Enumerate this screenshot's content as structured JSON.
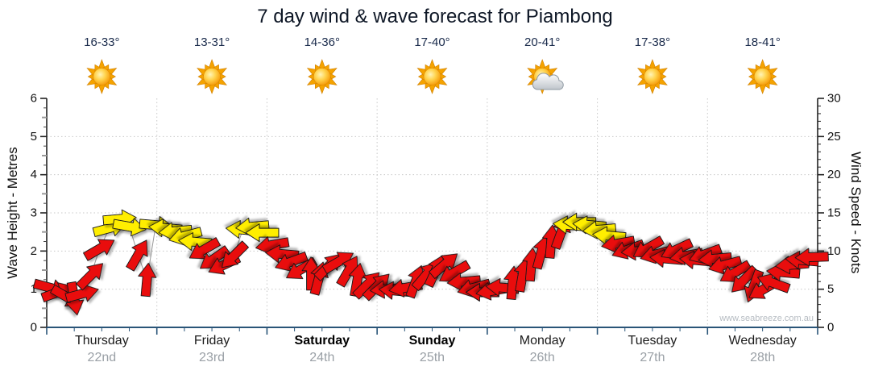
{
  "title": "7 day wind & wave forecast for Piambong",
  "watermark": "www.seabreeze.com.au",
  "colors": {
    "red": "#e90f0f",
    "yellow": "#ffee00",
    "grid": "#c8c8c8",
    "bottom_axis": "#2a5578"
  },
  "days": [
    {
      "name": "Thursday",
      "date": "22nd",
      "temp": "16-33°",
      "icon": "sunny",
      "weekend": false
    },
    {
      "name": "Friday",
      "date": "23rd",
      "temp": "13-31°",
      "icon": "sunny",
      "weekend": false
    },
    {
      "name": "Saturday",
      "date": "24th",
      "temp": "14-36°",
      "icon": "sunny",
      "weekend": true
    },
    {
      "name": "Sunday",
      "date": "25th",
      "temp": "17-40°",
      "icon": "sunny",
      "weekend": true
    },
    {
      "name": "Monday",
      "date": "26th",
      "temp": "20-41°",
      "icon": "partly-cloudy",
      "weekend": false
    },
    {
      "name": "Tuesday",
      "date": "27th",
      "temp": "17-38°",
      "icon": "sunny",
      "weekend": false
    },
    {
      "name": "Wednesday",
      "date": "28th",
      "temp": "18-41°",
      "icon": "sunny",
      "weekend": false
    }
  ],
  "chart_data": {
    "type": "line",
    "title": "7 day wind & wave forecast for Piambong",
    "grid": "dotted",
    "left_axis": {
      "label": "Wave Height - Metres",
      "min": 0,
      "max": 6,
      "tick_step": 1
    },
    "right_axis": {
      "label": "Wind Speed - Knots",
      "min": 0,
      "max": 30,
      "tick_step": 5
    },
    "x_axis": {
      "unit": "day",
      "range": [
        0,
        7
      ]
    },
    "series": [
      {
        "name": "Wind speed and direction",
        "units": "knots",
        "points": [
          {
            "d": 0.03,
            "kn": 5.2,
            "rot": 15,
            "c": "red"
          },
          {
            "d": 0.1,
            "kn": 4.6,
            "rot": -20,
            "c": "red"
          },
          {
            "d": 0.18,
            "kn": 4.0,
            "rot": 30,
            "c": "red"
          },
          {
            "d": 0.25,
            "kn": 3.8,
            "rot": 80,
            "c": "red"
          },
          {
            "d": 0.32,
            "kn": 4.4,
            "rot": -15,
            "c": "red"
          },
          {
            "d": 0.4,
            "kn": 6.8,
            "rot": -45,
            "c": "red"
          },
          {
            "d": 0.48,
            "kn": 10.3,
            "rot": -30,
            "c": "red"
          },
          {
            "d": 0.57,
            "kn": 13.0,
            "rot": -15,
            "c": "yellow"
          },
          {
            "d": 0.66,
            "kn": 14.2,
            "rot": -5,
            "c": "yellow"
          },
          {
            "d": 0.75,
            "kn": 13.2,
            "rot": 10,
            "c": "yellow"
          },
          {
            "d": 0.83,
            "kn": 9.5,
            "rot": -60,
            "c": "red"
          },
          {
            "d": 0.91,
            "kn": 6.2,
            "rot": -85,
            "c": "red"
          },
          {
            "d": 0.99,
            "kn": 13.4,
            "rot": 5,
            "c": "yellow"
          },
          {
            "d": 1.08,
            "kn": 13.0,
            "rot": 185,
            "c": "yellow"
          },
          {
            "d": 1.17,
            "kn": 12.6,
            "rot": 175,
            "c": "yellow"
          },
          {
            "d": 1.26,
            "kn": 12.0,
            "rot": 165,
            "c": "yellow"
          },
          {
            "d": 1.35,
            "kn": 11.2,
            "rot": 185,
            "c": "yellow"
          },
          {
            "d": 1.43,
            "kn": 10.2,
            "rot": 150,
            "c": "red"
          },
          {
            "d": 1.52,
            "kn": 9.0,
            "rot": 145,
            "c": "red"
          },
          {
            "d": 1.61,
            "kn": 8.2,
            "rot": 155,
            "c": "red"
          },
          {
            "d": 1.7,
            "kn": 9.4,
            "rot": 135,
            "c": "red"
          },
          {
            "d": 1.78,
            "kn": 12.8,
            "rot": 185,
            "c": "yellow"
          },
          {
            "d": 1.87,
            "kn": 13.2,
            "rot": 175,
            "c": "yellow"
          },
          {
            "d": 1.96,
            "kn": 12.4,
            "rot": 180,
            "c": "yellow"
          },
          {
            "d": 2.05,
            "kn": 10.8,
            "rot": 170,
            "c": "red"
          },
          {
            "d": 2.14,
            "kn": 9.6,
            "rot": 185,
            "c": "red"
          },
          {
            "d": 2.22,
            "kn": 8.6,
            "rot": 160,
            "c": "red"
          },
          {
            "d": 2.31,
            "kn": 7.6,
            "rot": 150,
            "c": "red"
          },
          {
            "d": 2.4,
            "kn": 7.0,
            "rot": -90,
            "c": "red"
          },
          {
            "d": 2.47,
            "kn": 6.4,
            "rot": -75,
            "c": "red"
          },
          {
            "d": 2.56,
            "kn": 8.0,
            "rot": -45,
            "c": "red"
          },
          {
            "d": 2.65,
            "kn": 8.6,
            "rot": -30,
            "c": "red"
          },
          {
            "d": 2.74,
            "kn": 7.4,
            "rot": -60,
            "c": "red"
          },
          {
            "d": 2.82,
            "kn": 6.2,
            "rot": -80,
            "c": "red"
          },
          {
            "d": 2.91,
            "kn": 5.6,
            "rot": -45,
            "c": "red"
          },
          {
            "d": 3.0,
            "kn": 5.4,
            "rot": -45,
            "c": "red"
          },
          {
            "d": 3.09,
            "kn": 5.0,
            "rot": 175,
            "c": "red"
          },
          {
            "d": 3.17,
            "kn": 4.8,
            "rot": 185,
            "c": "red"
          },
          {
            "d": 3.26,
            "kn": 5.2,
            "rot": 170,
            "c": "red"
          },
          {
            "d": 3.35,
            "kn": 6.0,
            "rot": -70,
            "c": "red"
          },
          {
            "d": 3.44,
            "kn": 6.8,
            "rot": -50,
            "c": "red"
          },
          {
            "d": 3.53,
            "kn": 7.4,
            "rot": -65,
            "c": "red"
          },
          {
            "d": 3.61,
            "kn": 8.2,
            "rot": -40,
            "c": "red"
          },
          {
            "d": 3.7,
            "kn": 7.2,
            "rot": 150,
            "c": "red"
          },
          {
            "d": 3.79,
            "kn": 6.0,
            "rot": 175,
            "c": "red"
          },
          {
            "d": 3.88,
            "kn": 5.2,
            "rot": 165,
            "c": "red"
          },
          {
            "d": 3.96,
            "kn": 4.6,
            "rot": 180,
            "c": "red"
          },
          {
            "d": 4.05,
            "kn": 4.8,
            "rot": 170,
            "c": "red"
          },
          {
            "d": 4.14,
            "kn": 5.2,
            "rot": 185,
            "c": "red"
          },
          {
            "d": 4.23,
            "kn": 5.8,
            "rot": -85,
            "c": "red"
          },
          {
            "d": 4.32,
            "kn": 6.8,
            "rot": -80,
            "c": "red"
          },
          {
            "d": 4.4,
            "kn": 8.2,
            "rot": -85,
            "c": "red"
          },
          {
            "d": 4.49,
            "kn": 9.8,
            "rot": -75,
            "c": "red"
          },
          {
            "d": 4.58,
            "kn": 11.2,
            "rot": -85,
            "c": "red"
          },
          {
            "d": 4.67,
            "kn": 12.4,
            "rot": -70,
            "c": "red"
          },
          {
            "d": 4.75,
            "kn": 13.4,
            "rot": 185,
            "c": "yellow"
          },
          {
            "d": 4.84,
            "kn": 13.8,
            "rot": 180,
            "c": "yellow"
          },
          {
            "d": 4.93,
            "kn": 13.4,
            "rot": 185,
            "c": "yellow"
          },
          {
            "d": 5.02,
            "kn": 12.8,
            "rot": 175,
            "c": "yellow"
          },
          {
            "d": 5.11,
            "kn": 12.0,
            "rot": 185,
            "c": "yellow"
          },
          {
            "d": 5.19,
            "kn": 11.0,
            "rot": 170,
            "c": "red"
          },
          {
            "d": 5.28,
            "kn": 10.2,
            "rot": 160,
            "c": "red"
          },
          {
            "d": 5.37,
            "kn": 10.0,
            "rot": 175,
            "c": "red"
          },
          {
            "d": 5.46,
            "kn": 10.4,
            "rot": 150,
            "c": "red"
          },
          {
            "d": 5.54,
            "kn": 9.6,
            "rot": 165,
            "c": "red"
          },
          {
            "d": 5.63,
            "kn": 9.0,
            "rot": 185,
            "c": "red"
          },
          {
            "d": 5.72,
            "kn": 10.2,
            "rot": 155,
            "c": "red"
          },
          {
            "d": 5.81,
            "kn": 9.4,
            "rot": 170,
            "c": "red"
          },
          {
            "d": 5.9,
            "kn": 8.8,
            "rot": 185,
            "c": "red"
          },
          {
            "d": 5.98,
            "kn": 9.6,
            "rot": 160,
            "c": "red"
          },
          {
            "d": 6.07,
            "kn": 9.0,
            "rot": 175,
            "c": "red"
          },
          {
            "d": 6.16,
            "kn": 8.2,
            "rot": 165,
            "c": "red"
          },
          {
            "d": 6.25,
            "kn": 7.2,
            "rot": 150,
            "c": "red"
          },
          {
            "d": 6.33,
            "kn": 6.2,
            "rot": 135,
            "c": "red"
          },
          {
            "d": 6.42,
            "kn": 5.4,
            "rot": 110,
            "c": "red"
          },
          {
            "d": 6.51,
            "kn": 5.0,
            "rot": 150,
            "c": "red"
          },
          {
            "d": 6.6,
            "kn": 5.8,
            "rot": -160,
            "c": "red"
          },
          {
            "d": 6.69,
            "kn": 7.2,
            "rot": 185,
            "c": "red"
          },
          {
            "d": 6.77,
            "kn": 8.2,
            "rot": 175,
            "c": "red"
          },
          {
            "d": 6.86,
            "kn": 8.8,
            "rot": 185,
            "c": "red"
          },
          {
            "d": 6.95,
            "kn": 9.2,
            "rot": 178,
            "c": "red"
          }
        ]
      }
    ]
  }
}
